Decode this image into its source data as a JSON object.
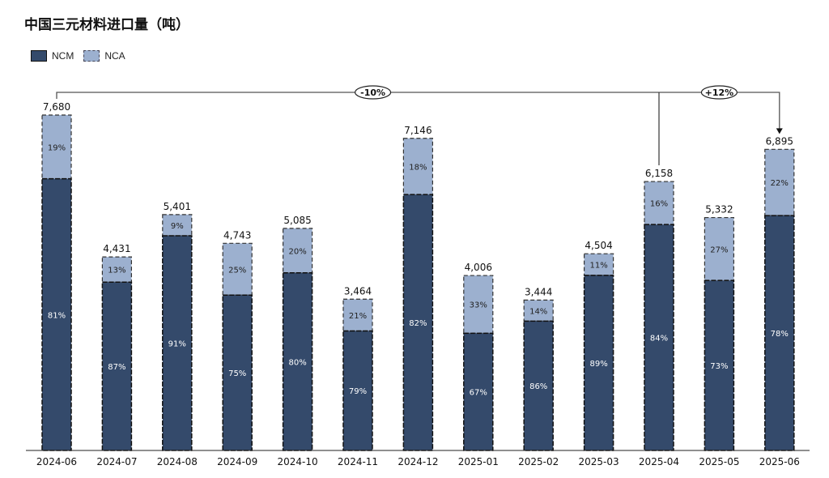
{
  "chart_data": {
    "type": "bar",
    "stacked": true,
    "title": "中国三元材料进口量（吨）",
    "categories": [
      "2024-06",
      "2024-07",
      "2024-08",
      "2024-09",
      "2024-10",
      "2024-11",
      "2024-12",
      "2025-01",
      "2025-02",
      "2025-03",
      "2025-04",
      "2025-05",
      "2025-06"
    ],
    "totals": [
      7680,
      4431,
      5401,
      4743,
      5085,
      3464,
      7146,
      4006,
      3444,
      4504,
      6158,
      5332,
      6895
    ],
    "total_labels": [
      "7,680",
      "4,431",
      "5,401",
      "4,743",
      "5,085",
      "3,464",
      "7,146",
      "4,006",
      "3,444",
      "4,504",
      "6,158",
      "5,332",
      "6,895"
    ],
    "series": [
      {
        "name": "NCM",
        "color": "#344a6b",
        "share_pct": [
          81,
          87,
          91,
          75,
          80,
          79,
          82,
          67,
          86,
          89,
          84,
          73,
          78
        ]
      },
      {
        "name": "NCA",
        "color": "#9cb0cf",
        "share_pct": [
          19,
          13,
          9,
          25,
          20,
          21,
          18,
          33,
          14,
          11,
          16,
          27,
          22
        ]
      }
    ],
    "legend": [
      "NCM",
      "NCA"
    ],
    "legend_position": "top-left",
    "annotations": [
      {
        "label": "-10%",
        "from": "2024-06",
        "to": "2025-06"
      },
      {
        "label": "+12%",
        "from": "2025-04",
        "to": "2025-06"
      }
    ],
    "ylim": [
      0,
      7680
    ]
  }
}
